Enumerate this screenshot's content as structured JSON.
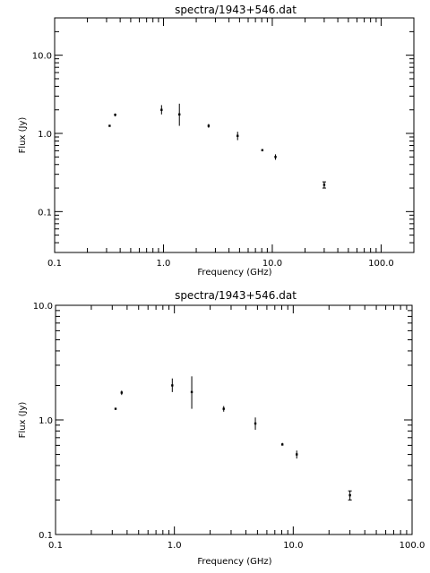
{
  "chart_data": [
    {
      "type": "scatter",
      "title": "spectra/1943+546.dat",
      "xlabel": "Frequency (GHz)",
      "ylabel": "Flux (Jy)",
      "xscale": "log",
      "yscale": "log",
      "xlim": [
        0.1,
        200
      ],
      "ylim": [
        0.03,
        30
      ],
      "xticks": [
        0.1,
        1.0,
        10.0,
        100.0
      ],
      "xtick_labels": [
        "0.1",
        "1.0",
        "10.0",
        "100.0"
      ],
      "yticks": [
        0.1,
        1.0,
        10.0
      ],
      "ytick_labels": [
        "0.1",
        "1.0",
        "10.0"
      ],
      "grid": false,
      "points": [
        {
          "x": 0.32,
          "y": 1.25,
          "ylo": 1.25,
          "yhi": 1.25
        },
        {
          "x": 0.36,
          "y": 1.73,
          "ylo": 1.65,
          "yhi": 1.8
        },
        {
          "x": 0.96,
          "y": 2.0,
          "ylo": 1.75,
          "yhi": 2.3
        },
        {
          "x": 1.4,
          "y": 1.75,
          "ylo": 1.25,
          "yhi": 2.4
        },
        {
          "x": 2.6,
          "y": 1.25,
          "ylo": 1.18,
          "yhi": 1.32
        },
        {
          "x": 4.8,
          "y": 0.93,
          "ylo": 0.82,
          "yhi": 1.05
        },
        {
          "x": 8.1,
          "y": 0.61,
          "ylo": 0.6,
          "yhi": 0.63
        },
        {
          "x": 10.7,
          "y": 0.5,
          "ylo": 0.46,
          "yhi": 0.54
        },
        {
          "x": 30.0,
          "y": 0.22,
          "ylo": 0.2,
          "yhi": 0.24
        }
      ]
    },
    {
      "type": "scatter",
      "title": "spectra/1943+546.dat",
      "xlabel": "Frequency (GHz)",
      "ylabel": "Flux (Jy)",
      "xscale": "log",
      "yscale": "log",
      "xlim": [
        0.1,
        100
      ],
      "ylim": [
        0.1,
        10
      ],
      "xticks": [
        0.1,
        1.0,
        10.0,
        100.0
      ],
      "xtick_labels": [
        "0.1",
        "1.0",
        "10.0",
        "100.0"
      ],
      "yticks": [
        0.1,
        1.0,
        10.0
      ],
      "ytick_labels": [
        "0.1",
        "1.0",
        "10.0"
      ],
      "grid": false,
      "points": [
        {
          "x": 0.32,
          "y": 1.25,
          "ylo": 1.25,
          "yhi": 1.25
        },
        {
          "x": 0.36,
          "y": 1.73,
          "ylo": 1.65,
          "yhi": 1.8
        },
        {
          "x": 0.96,
          "y": 2.0,
          "ylo": 1.75,
          "yhi": 2.3
        },
        {
          "x": 1.4,
          "y": 1.75,
          "ylo": 1.25,
          "yhi": 2.4
        },
        {
          "x": 2.6,
          "y": 1.25,
          "ylo": 1.18,
          "yhi": 1.32
        },
        {
          "x": 4.8,
          "y": 0.93,
          "ylo": 0.82,
          "yhi": 1.05
        },
        {
          "x": 8.1,
          "y": 0.61,
          "ylo": 0.6,
          "yhi": 0.63
        },
        {
          "x": 10.7,
          "y": 0.5,
          "ylo": 0.46,
          "yhi": 0.54
        },
        {
          "x": 30.0,
          "y": 0.22,
          "ylo": 0.2,
          "yhi": 0.24
        }
      ]
    }
  ]
}
